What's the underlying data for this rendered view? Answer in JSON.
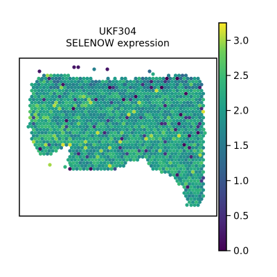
{
  "chart_data": {
    "type": "scatter",
    "title": "UKF304",
    "subtitle": "SELENOW expression",
    "xlabel": "",
    "ylabel": "",
    "colormap": "viridis",
    "colorbar": {
      "range": [
        0.0,
        3.25
      ],
      "ticks": [
        0.0,
        0.5,
        1.0,
        1.5,
        2.0,
        2.5,
        3.0
      ],
      "tick_labels": [
        "0.0",
        "0.5",
        "1.0",
        "1.5",
        "2.0",
        "2.5",
        "3.0"
      ]
    },
    "series": [
      {
        "value_range": [
          0.0,
          3.25
        ]
      }
    ]
  }
}
